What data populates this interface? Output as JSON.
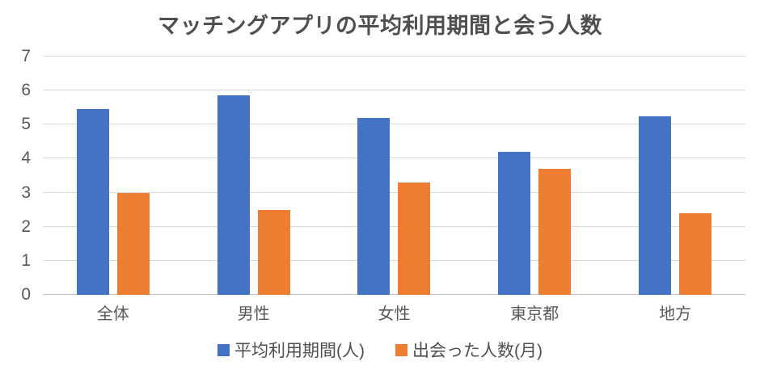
{
  "chart_data": {
    "type": "bar",
    "title": "マッチングアプリの平均利用期間と会う人数",
    "categories": [
      "全体",
      "男性",
      "女性",
      "東京都",
      "地方"
    ],
    "series": [
      {
        "name": "平均利用期間(人)",
        "color": "#4472C4",
        "values": [
          5.45,
          5.85,
          5.2,
          4.2,
          5.25
        ]
      },
      {
        "name": "出会った人数(月)",
        "color": "#ED7D31",
        "values": [
          3.0,
          2.5,
          3.3,
          3.7,
          2.4
        ]
      }
    ],
    "ylim": [
      0,
      7
    ],
    "yticks": [
      0,
      1,
      2,
      3,
      4,
      5,
      6,
      7
    ],
    "grid": true,
    "legend_position": "bottom",
    "xlabel": "",
    "ylabel": ""
  },
  "colors": {
    "background": "#ffffff",
    "title_text": "#4f4f4f",
    "axis_text": "#595959",
    "legend_text": "#4f4f4f",
    "gridline": "#d9d9d9",
    "axis_line": "#bfbfbf",
    "series_blue": "#4472C4",
    "series_orange": "#ED7D31"
  }
}
